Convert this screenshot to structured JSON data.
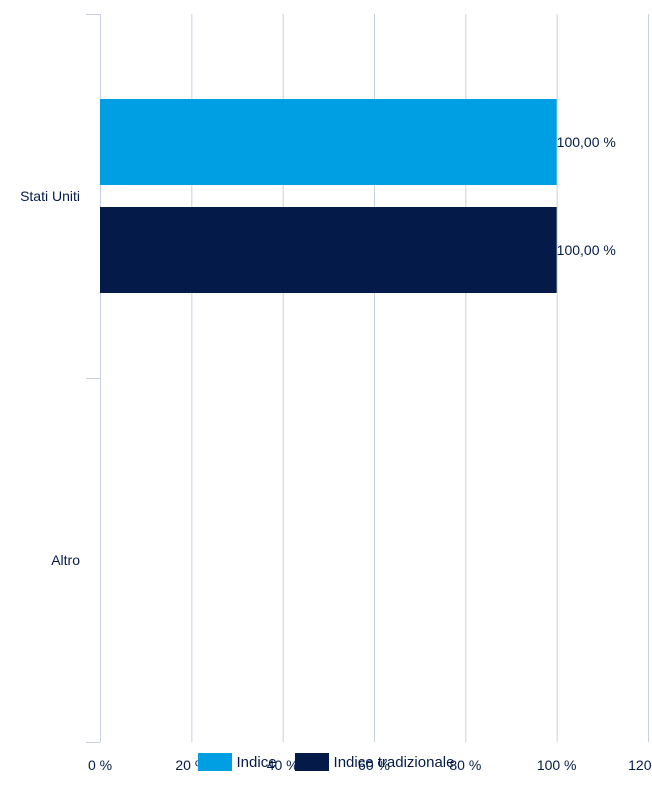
{
  "chart_data": {
    "type": "bar",
    "orientation": "horizontal",
    "categories": [
      "Stati Uniti",
      "Altro"
    ],
    "series": [
      {
        "name": "Indice",
        "color": "#009fe3",
        "values": [
          100,
          0
        ],
        "labels": [
          "100,00 %",
          ""
        ]
      },
      {
        "name": "Indice tradizionale",
        "color": "#041b49",
        "values": [
          100,
          0
        ],
        "labels": [
          "100,00 %",
          ""
        ]
      }
    ],
    "xlim": [
      0,
      120
    ],
    "xticks": [
      0,
      20,
      40,
      60,
      80,
      100,
      120
    ],
    "xtick_labels": [
      "0 %",
      "20 %",
      "40 %",
      "60 %",
      "80 %",
      "100 %",
      "120 %"
    ],
    "grid": true,
    "legend_position": "bottom",
    "title": "",
    "xlabel": "",
    "ylabel": ""
  }
}
